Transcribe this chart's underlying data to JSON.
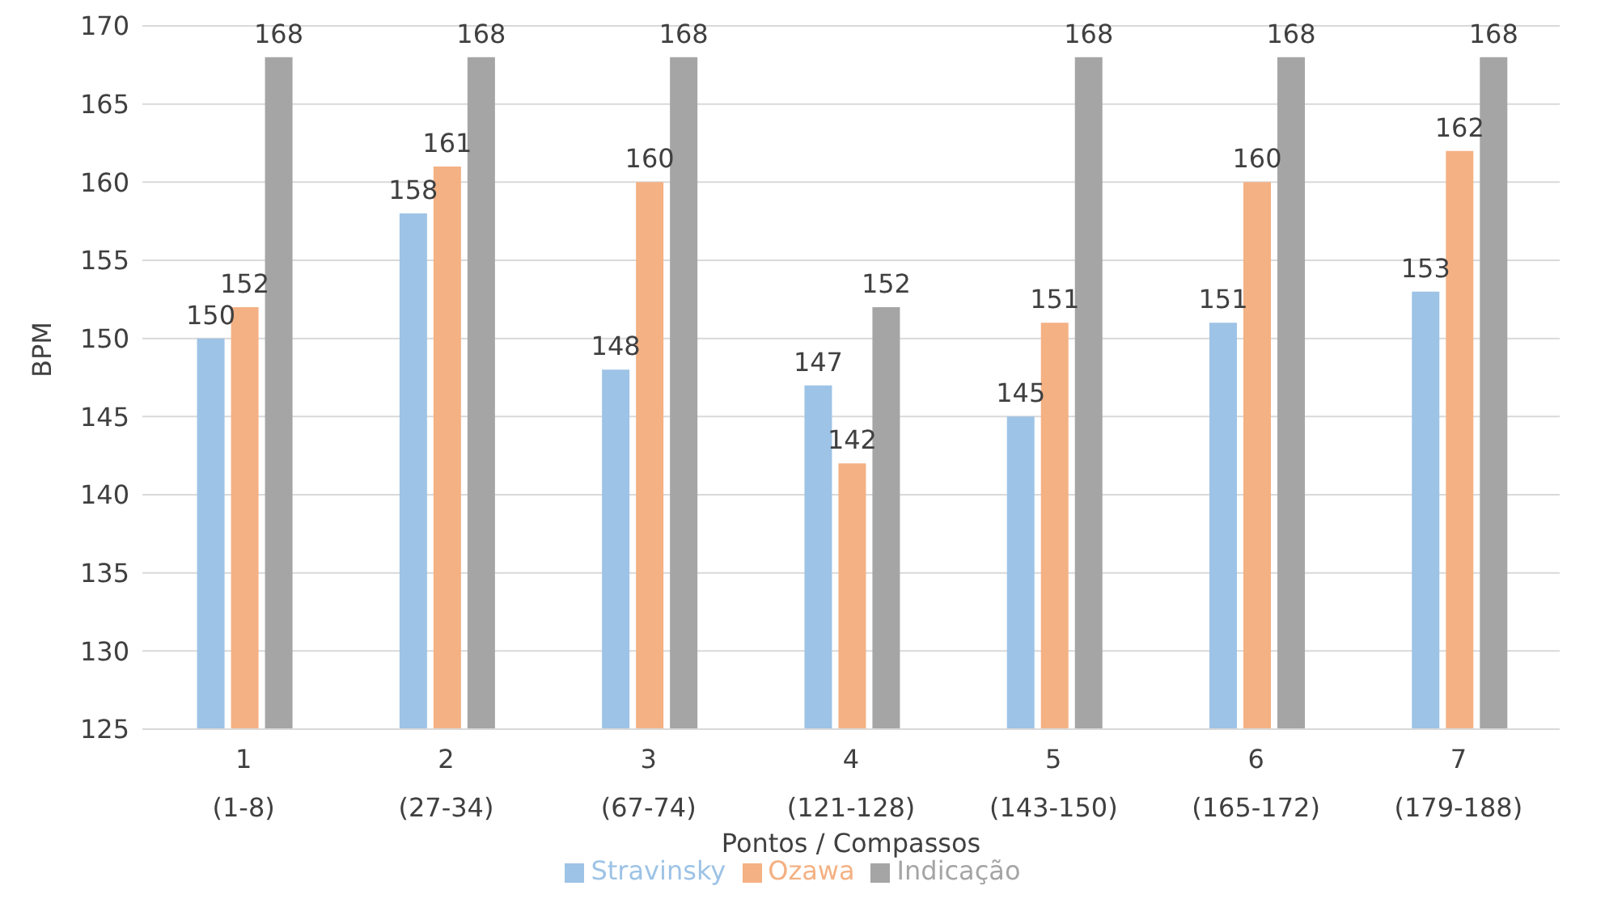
{
  "chart_data": {
    "type": "bar",
    "xlabel": "Pontos / Compassos",
    "ylabel": "BPM",
    "categories": [
      "1\n(1-8)",
      "2\n(27-34)",
      "3\n(67-74)",
      "4\n(121-128)",
      "5\n(143-150)",
      "6\n(165-172)",
      "7\n(179-188)"
    ],
    "series": [
      {
        "name": "Stravinsky",
        "color": "#9dc3e6",
        "values": [
          150,
          158,
          148,
          147,
          145,
          151,
          153
        ]
      },
      {
        "name": "Ozawa",
        "color": "#f4b183",
        "values": [
          152,
          161,
          160,
          142,
          151,
          160,
          162
        ]
      },
      {
        "name": "Indicação",
        "color": "#a5a5a5",
        "values": [
          168,
          168,
          168,
          152,
          168,
          168,
          168
        ]
      }
    ],
    "ylim": [
      125,
      170
    ],
    "yticks": [
      125,
      130,
      135,
      140,
      145,
      150,
      155,
      160,
      165,
      170
    ],
    "grid": "y",
    "legend": "bottom",
    "data_labels": true
  }
}
